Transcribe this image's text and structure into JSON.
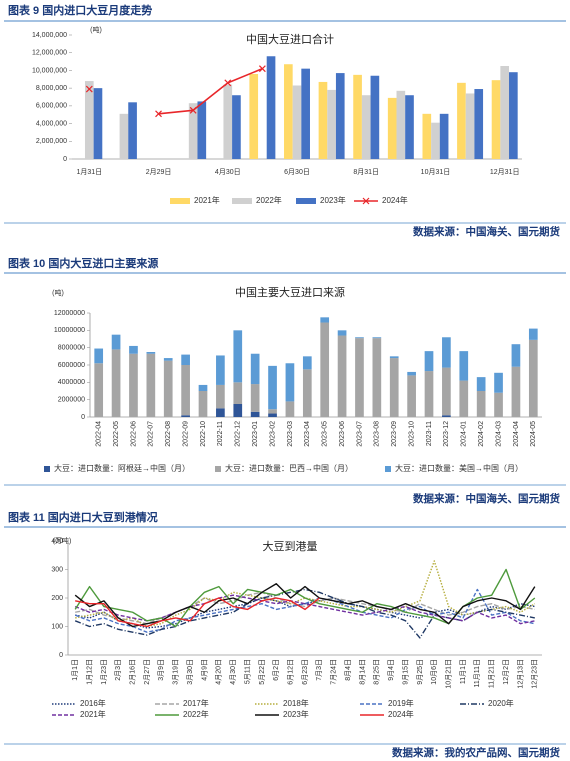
{
  "headings": [
    "图表 9  国内进口大豆月度走势",
    "图表 10  国内大豆进口主要来源",
    "图表 11  国内进口大豆到港情况"
  ],
  "sources": [
    "数据来源：中国海关、国元期货",
    "数据来源：中国海关、国元期货",
    "数据来源：我的农产品网、国元期货"
  ],
  "chart_data": [
    {
      "type": "bar",
      "title": "中国大豆进口合计",
      "y_label": "(吨)",
      "grid": false,
      "categories": [
        "1月31日",
        null,
        "2月29日",
        null,
        "4月30日",
        null,
        "6月30日",
        null,
        "8月31日",
        null,
        "10月31日",
        null,
        "12月31日"
      ],
      "ylim": [
        0,
        14000000
      ],
      "yticks": [
        0,
        {
          "value": 2000000,
          "label": "2,000,000"
        },
        {
          "value": 4000000,
          "label": "4,000,000"
        },
        {
          "value": 6000000,
          "label": "6,000,000"
        },
        {
          "value": 8000000,
          "label": "8,000,000"
        },
        {
          "value": 10000000,
          "label": "10,000,000"
        },
        {
          "value": 12000000,
          "label": "12,000,000"
        },
        {
          "value": 14000000,
          "label": "14,000,000"
        }
      ],
      "series": [
        {
          "name": "2021年",
          "color": "#ffd966",
          "values": [
            null,
            null,
            null,
            null,
            null,
            9600000,
            10700000,
            8700000,
            9500000,
            6900000,
            5100000,
            8600000,
            8900000
          ]
        },
        {
          "name": "2022年",
          "color": "#d0d0d0",
          "values": [
            8800000,
            5100000,
            null,
            6300000,
            8400000,
            null,
            8300000,
            7800000,
            7200000,
            7700000,
            4100000,
            7400000,
            10500000
          ]
        },
        {
          "name": "2023年",
          "color": "#4472c4",
          "values": [
            8000000,
            6400000,
            null,
            6500000,
            7200000,
            11600000,
            10200000,
            9700000,
            9400000,
            7200000,
            5100000,
            7900000,
            9800000
          ]
        },
        {
          "name": "2024年",
          "color": "#e8262a",
          "type": "line",
          "marker": "x",
          "values": [
            7900000,
            null,
            5100000,
            5500000,
            8600000,
            10200000,
            null,
            null,
            null,
            null,
            null,
            null,
            null
          ]
        }
      ]
    },
    {
      "type": "stacked_bar",
      "title": "中国主要大豆进口来源",
      "y_label": "(吨)",
      "grid": false,
      "categories": [
        "2022-04",
        "2022-05",
        "2022-06",
        "2022-07",
        "2022-08",
        "2022-09",
        "2022-10",
        "2022-11",
        "2022-12",
        "2023-01",
        "2023-02",
        "2023-03",
        "2023-04",
        "2023-05",
        "2023-06",
        "2023-07",
        "2023-08",
        "2023-09",
        "2023-10",
        "2023-11",
        "2023-12",
        "2024-01",
        "2024-02",
        "2024-03",
        "2024-04",
        "2024-05"
      ],
      "ylim": [
        0,
        12000000
      ],
      "yticks": [
        0,
        2000000,
        4000000,
        6000000,
        8000000,
        10000000,
        12000000
      ],
      "series": [
        {
          "name": "大豆：进口数量：阿根廷→中国（月）",
          "color": "#2f5597",
          "values": [
            0,
            0,
            0,
            0,
            0,
            200000,
            0,
            1000000,
            1500000,
            600000,
            400000,
            0,
            0,
            0,
            0,
            0,
            0,
            0,
            0,
            0,
            200000,
            0,
            0,
            0,
            0,
            0
          ]
        },
        {
          "name": "大豆：进口数量：巴西→中国（月）",
          "color": "#a5a5a5",
          "values": [
            6200000,
            7800000,
            7300000,
            7300000,
            6500000,
            5800000,
            3000000,
            2700000,
            2500000,
            3200000,
            500000,
            1800000,
            5500000,
            10900000,
            9400000,
            9100000,
            9100000,
            6800000,
            4800000,
            5300000,
            5500000,
            4200000,
            3000000,
            2800000,
            5800000,
            8900000
          ]
        },
        {
          "name": "大豆：进口数量：美国→中国（月）",
          "color": "#5b9bd5",
          "values": [
            1700000,
            1700000,
            900000,
            200000,
            300000,
            1200000,
            700000,
            3400000,
            6000000,
            3500000,
            5000000,
            4400000,
            1500000,
            600000,
            600000,
            100000,
            100000,
            200000,
            400000,
            2300000,
            3500000,
            3400000,
            1600000,
            2300000,
            2600000,
            1300000
          ]
        }
      ]
    },
    {
      "type": "line",
      "title": "大豆到港量",
      "y_label": "(万吨)",
      "grid": false,
      "categories": [
        "1月1日",
        "1月12日",
        "1月23日",
        "2月3日",
        "2月16日",
        "2月27日",
        "3月9日",
        "3月19日",
        "3月30日",
        "4月9日",
        "4月20日",
        "4月30日",
        "5月11日",
        "5月22日",
        "6月2日",
        "6月12日",
        "6月23日",
        "7月3日",
        "7月24日",
        "8月4日",
        "8月14日",
        "8月25日",
        "9月4日",
        "9月15日",
        "9月25日",
        "10月6日",
        "10月21日",
        "11月1日",
        "11月11日",
        "11月21日",
        "12月2日",
        "12月13日",
        "12月23日"
      ],
      "ylim": [
        0,
        400
      ],
      "yticks": [
        0,
        100,
        200,
        300,
        400
      ],
      "series": [
        {
          "name": "2016年",
          "color": "#1f3b7a",
          "dash": "1.5,1.5",
          "values": [
            140,
            130,
            150,
            120,
            110,
            95,
            100,
            110,
            130,
            150,
            160,
            170,
            180,
            200,
            190,
            170,
            180,
            190,
            200,
            180,
            170,
            160,
            150,
            140,
            130,
            150,
            160,
            140,
            150,
            170,
            160,
            180,
            170
          ]
        },
        {
          "name": "2017年",
          "color": "#a6a6a6",
          "dash": "5,2",
          "values": [
            150,
            160,
            140,
            130,
            120,
            110,
            130,
            150,
            170,
            200,
            180,
            190,
            210,
            220,
            200,
            180,
            170,
            190,
            200,
            190,
            180,
            170,
            160,
            150,
            180,
            160,
            140,
            150,
            170,
            180,
            160,
            170,
            160
          ]
        },
        {
          "name": "2018年",
          "color": "#b5ad3c",
          "dash": "1.5,1.5",
          "values": [
            130,
            140,
            150,
            120,
            130,
            100,
            110,
            140,
            160,
            200,
            190,
            220,
            210,
            200,
            190,
            180,
            200,
            190,
            180,
            170,
            170,
            160,
            150,
            170,
            190,
            330,
            170,
            140,
            150,
            160,
            170,
            150,
            180
          ]
        },
        {
          "name": "2019年",
          "color": "#4a72c4",
          "dash": "4,2",
          "values": [
            140,
            120,
            130,
            110,
            100,
            80,
            90,
            120,
            130,
            140,
            150,
            160,
            170,
            180,
            160,
            170,
            180,
            200,
            190,
            170,
            150,
            140,
            130,
            160,
            170,
            140,
            150,
            130,
            230,
            140,
            150,
            120,
            110
          ]
        },
        {
          "name": "2020年",
          "color": "#1f3864",
          "dash": "6,2,1,2",
          "values": [
            120,
            100,
            110,
            90,
            80,
            70,
            90,
            100,
            120,
            130,
            140,
            150,
            180,
            200,
            210,
            220,
            230,
            220,
            200,
            180,
            170,
            150,
            140,
            120,
            60,
            140,
            130,
            120,
            150,
            160,
            150,
            140,
            130
          ]
        },
        {
          "name": "2021年",
          "color": "#7030a0",
          "dash": "4,2",
          "values": [
            170,
            150,
            160,
            140,
            130,
            120,
            130,
            150,
            170,
            180,
            200,
            210,
            200,
            190,
            180,
            190,
            180,
            170,
            160,
            150,
            140,
            150,
            160,
            170,
            150,
            140,
            130,
            120,
            150,
            130,
            140,
            110,
            120
          ]
        },
        {
          "name": "2022年",
          "color": "#4e9a3c",
          "values": [
            160,
            240,
            170,
            160,
            150,
            120,
            130,
            100,
            170,
            220,
            240,
            180,
            230,
            220,
            210,
            230,
            200,
            180,
            170,
            160,
            150,
            180,
            170,
            150,
            140,
            130,
            110,
            170,
            200,
            210,
            300,
            160,
            200
          ]
        },
        {
          "name": "2023年",
          "color": "#111111",
          "values": [
            210,
            170,
            190,
            130,
            100,
            110,
            120,
            150,
            170,
            150,
            190,
            200,
            180,
            220,
            250,
            200,
            240,
            200,
            190,
            180,
            190,
            170,
            160,
            180,
            160,
            150,
            110,
            170,
            190,
            200,
            190,
            160,
            240
          ]
        },
        {
          "name": "2024年",
          "color": "#e8262a",
          "values": [
            190,
            180,
            180,
            120,
            110,
            100,
            120,
            130,
            120,
            180,
            200,
            170,
            160,
            190,
            200,
            190,
            160,
            200,
            null,
            null,
            null,
            null,
            null,
            null,
            null,
            null,
            null,
            null,
            null,
            null,
            null,
            null,
            null
          ]
        }
      ]
    }
  ]
}
